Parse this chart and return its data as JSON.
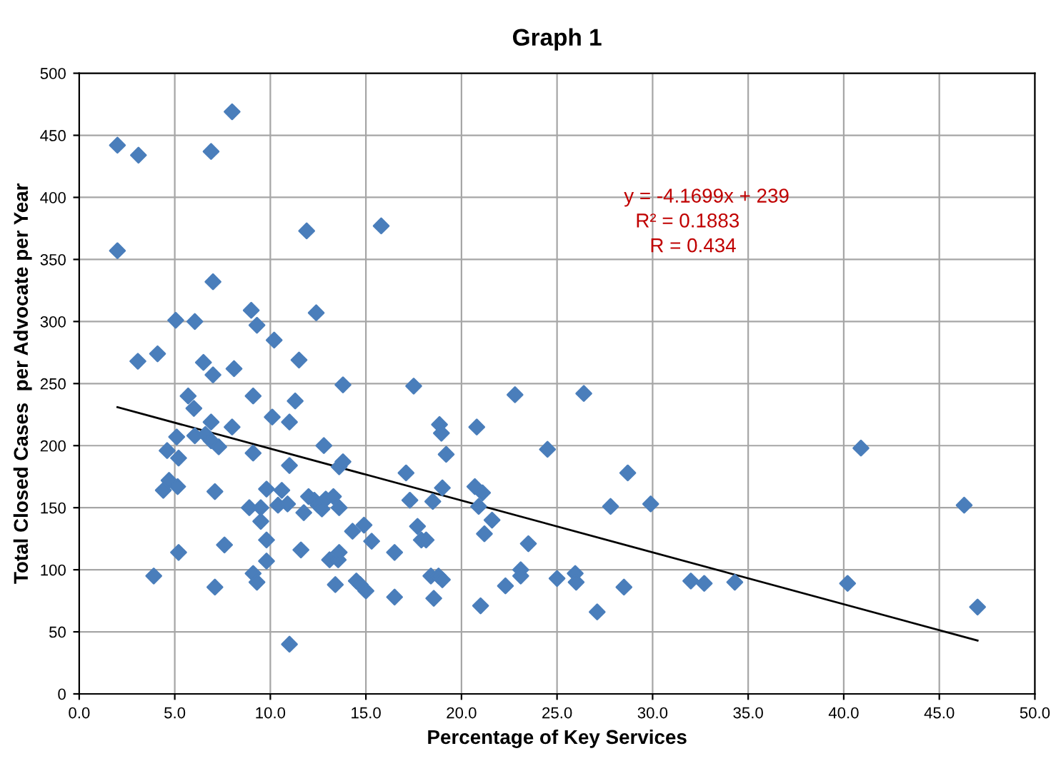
{
  "chart_data": {
    "type": "scatter",
    "title": "Graph 1",
    "xlabel": "Percentage of Key Services",
    "ylabel": "Total Closed Cases  per Advocate per Year",
    "xlim": [
      0,
      50
    ],
    "ylim": [
      0,
      500
    ],
    "xticks": [
      {
        "value": 0,
        "label": "0.0"
      },
      {
        "value": 5,
        "label": "5.0"
      },
      {
        "value": 10,
        "label": "10.0"
      },
      {
        "value": 15,
        "label": "15.0"
      },
      {
        "value": 20,
        "label": "20.0"
      },
      {
        "value": 25,
        "label": "25.0"
      },
      {
        "value": 30,
        "label": "30.0"
      },
      {
        "value": 35,
        "label": "35.0"
      },
      {
        "value": 40,
        "label": "40.0"
      },
      {
        "value": 45,
        "label": "45.0"
      },
      {
        "value": 50,
        "label": "50.0"
      }
    ],
    "yticks": [
      0,
      50,
      100,
      150,
      200,
      250,
      300,
      350,
      400,
      450,
      500
    ],
    "grid": true,
    "annotations": [
      "y = -4.1699x + 239",
      "R² = 0.1883",
      "R = 0.434"
    ],
    "series": [
      {
        "color": "#4a7ebb",
        "marker": "diamond",
        "x": [
          2.0,
          3.1,
          2.0,
          6.9,
          8.0,
          11.9,
          15.8,
          7.0,
          5.05,
          6.05,
          9.0,
          9.3,
          10.2,
          12.4,
          3.07,
          4.1,
          6.5,
          7.0,
          8.1,
          11.5,
          13.8,
          5.7,
          6.0,
          9.1,
          11.3,
          10.1,
          11.0,
          6.9,
          8.0,
          5.1,
          6.05,
          6.6,
          6.9,
          7.3,
          4.6,
          5.2,
          9.1,
          12.8,
          11.0,
          13.6,
          13.8,
          4.7,
          4.4,
          5.15,
          7.1,
          9.8,
          10.6,
          10.4,
          10.9,
          8.9,
          9.5,
          9.5,
          11.75,
          12.0,
          12.3,
          12.5,
          12.7,
          12.9,
          13.3,
          13.6,
          9.8,
          7.6,
          5.2,
          11.6,
          13.1,
          13.55,
          13.6,
          9.8,
          9.1,
          9.3,
          3.9,
          7.1,
          13.4,
          14.3,
          14.9,
          15.3,
          14.5,
          14.7,
          15.0,
          11.0,
          17.5,
          22.8,
          26.4,
          18.85,
          18.95,
          20.8,
          19.2,
          24.5,
          17.1,
          28.7,
          19.0,
          20.7,
          21.1,
          17.3,
          18.5,
          20.9,
          27.8,
          29.9,
          21.6,
          17.7,
          21.2,
          17.9,
          18.15,
          23.5,
          16.5,
          23.1,
          23.1,
          18.4,
          18.8,
          19.0,
          25.0,
          25.95,
          26.0,
          22.3,
          28.5,
          32.0,
          32.7,
          16.5,
          18.55,
          21.0,
          27.1,
          34.3,
          40.2,
          40.9,
          46.3,
          47.0
        ],
        "values": [
          442,
          434,
          357,
          437,
          469,
          373,
          377,
          332,
          301,
          300,
          309,
          297,
          285,
          307,
          268,
          274,
          267,
          257,
          262,
          269,
          249,
          240,
          230,
          240,
          236,
          223,
          219,
          219,
          215,
          207,
          208,
          209,
          204,
          199,
          196,
          190,
          194,
          200,
          184,
          183,
          187,
          172,
          164,
          167,
          163,
          165,
          164,
          152,
          153,
          150,
          150,
          139,
          146,
          159,
          156,
          152,
          149,
          157,
          159,
          150,
          124,
          120,
          114,
          116,
          108,
          108,
          114,
          107,
          97,
          90,
          95,
          86,
          88,
          131,
          136,
          123,
          91,
          88,
          83,
          40,
          248,
          241,
          242,
          217,
          210,
          215,
          193,
          197,
          178,
          178,
          166,
          167,
          162,
          156,
          155,
          151,
          151,
          153,
          140,
          135,
          129,
          124,
          124,
          121,
          114,
          100,
          95,
          95,
          95,
          92,
          93,
          97,
          90,
          87,
          86,
          91,
          89,
          78,
          77,
          71,
          66,
          90,
          89,
          198,
          152,
          70
        ]
      },
      {
        "type": "line",
        "color": "#000000",
        "marker": "none",
        "x": [
          2,
          47
        ],
        "values": [
          231,
          43
        ]
      }
    ]
  }
}
